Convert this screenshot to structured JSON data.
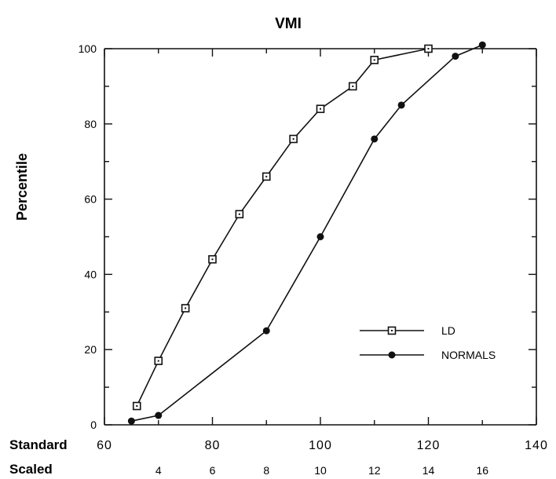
{
  "chart_data": {
    "type": "line",
    "title": "VMI",
    "ylabel": "Percentile",
    "xlabel": "",
    "xlim": [
      60,
      140
    ],
    "ylim": [
      0,
      100
    ],
    "x_row_label": "Standard",
    "x_ticks": [
      60,
      80,
      100,
      120,
      140
    ],
    "y_ticks": [
      0,
      20,
      40,
      60,
      80,
      100
    ],
    "secondary_x": {
      "label": "Scaled",
      "ticks": [
        {
          "at": 70,
          "label": "4"
        },
        {
          "at": 80,
          "label": "6"
        },
        {
          "at": 90,
          "label": "8"
        },
        {
          "at": 100,
          "label": "10"
        },
        {
          "at": 110,
          "label": "12"
        },
        {
          "at": 120,
          "label": "14"
        },
        {
          "at": 130,
          "label": "16"
        }
      ]
    },
    "grid": false,
    "legend_position": "lower-right",
    "series": [
      {
        "name": "LD",
        "marker": "open-square",
        "color": "#111111",
        "points": [
          [
            66,
            5
          ],
          [
            70,
            17
          ],
          [
            75,
            31
          ],
          [
            80,
            44
          ],
          [
            85,
            56
          ],
          [
            90,
            66
          ],
          [
            95,
            76
          ],
          [
            100,
            84
          ],
          [
            106,
            90
          ],
          [
            110,
            97
          ],
          [
            120,
            100
          ]
        ]
      },
      {
        "name": "NORMALS",
        "marker": "filled-circle",
        "color": "#111111",
        "points": [
          [
            65,
            1
          ],
          [
            70,
            2.5
          ],
          [
            90,
            25
          ],
          [
            100,
            50
          ],
          [
            110,
            76
          ],
          [
            115,
            85
          ],
          [
            125,
            98
          ],
          [
            130,
            101
          ]
        ]
      }
    ]
  }
}
